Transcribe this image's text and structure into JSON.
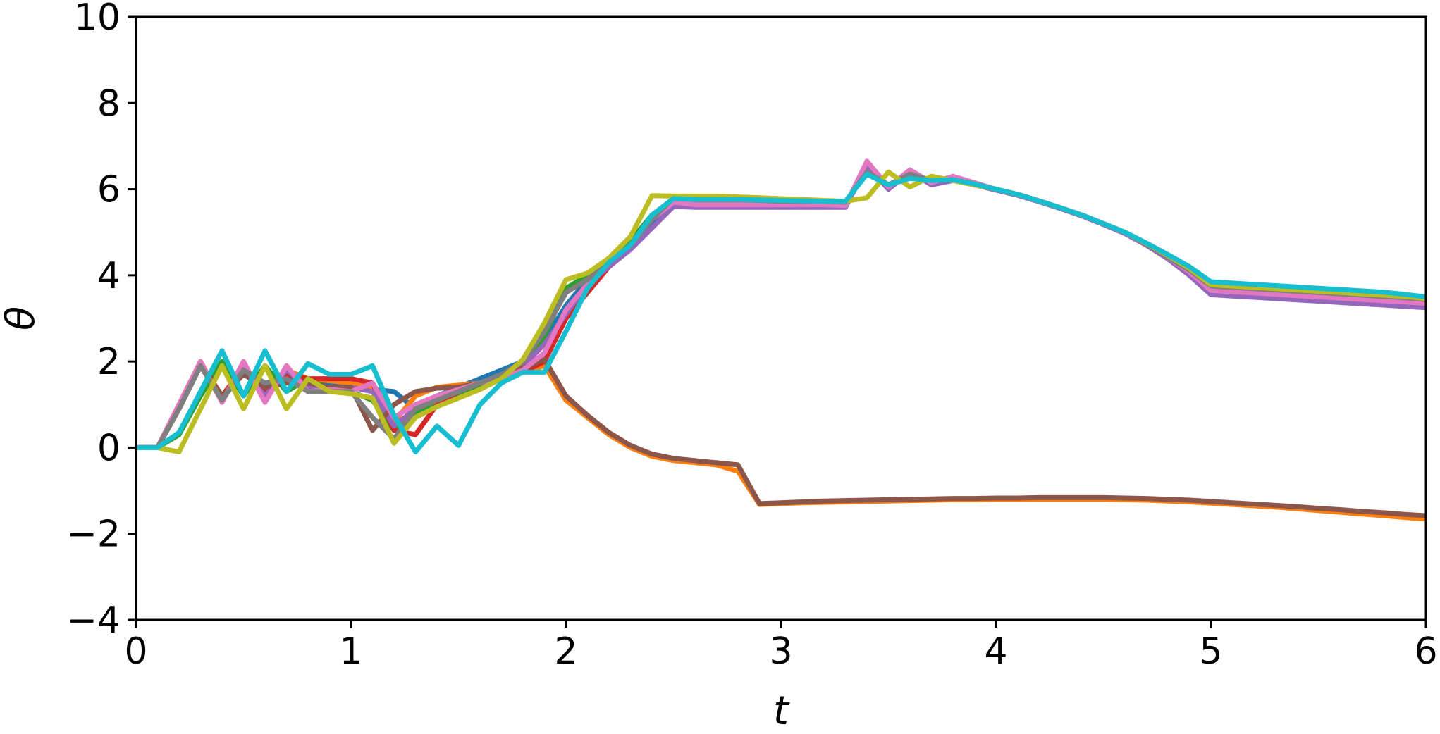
{
  "chart_data": {
    "type": "line",
    "title": "",
    "xlabel": "t",
    "ylabel": "θ",
    "xlim": [
      0,
      6
    ],
    "ylim": [
      -4,
      10
    ],
    "xticks": [
      0,
      1,
      2,
      3,
      4,
      5,
      6
    ],
    "xtick_labels": [
      "0",
      "1",
      "2",
      "3",
      "4",
      "5",
      "6"
    ],
    "yticks": [
      -4,
      -2,
      0,
      2,
      4,
      6,
      8,
      10
    ],
    "ytick_labels": [
      "−4",
      "−2",
      "0",
      "2",
      "4",
      "6",
      "8",
      "10"
    ],
    "grid": false,
    "legend": false,
    "x": [
      0,
      0.1,
      0.2,
      0.3,
      0.4,
      0.5,
      0.6,
      0.7,
      0.8,
      0.9,
      1.0,
      1.1,
      1.2,
      1.3,
      1.4,
      1.5,
      1.6,
      1.7,
      1.8,
      1.9,
      2.0,
      2.1,
      2.2,
      2.3,
      2.4,
      2.5,
      2.6,
      2.7,
      2.8,
      2.9,
      3.0,
      3.1,
      3.2,
      3.3,
      3.4,
      3.5,
      3.6,
      3.7,
      3.8,
      3.9,
      4.0,
      4.1,
      4.2,
      4.3,
      4.4,
      4.5,
      4.6,
      4.7,
      4.8,
      4.9,
      5.0,
      5.1,
      5.2,
      5.3,
      5.4,
      5.5,
      5.6,
      5.7,
      5.8,
      5.9,
      6.0
    ],
    "series": [
      {
        "color": "#1f77b4",
        "values": [
          0,
          0,
          0.9,
          1.9,
          1.2,
          1.8,
          1.3,
          1.7,
          1.5,
          1.45,
          1.4,
          1.35,
          1.3,
          0.9,
          1.2,
          1.4,
          1.6,
          1.8,
          2.0,
          2.5,
          3.3,
          3.9,
          4.3,
          4.7,
          5.2,
          5.65,
          5.62,
          5.62,
          5.62,
          5.62,
          5.62,
          5.62,
          5.62,
          5.62,
          6.5,
          6.05,
          6.35,
          6.15,
          6.25,
          6.12,
          6.0,
          5.88,
          5.73,
          5.57,
          5.4,
          5.2,
          5.0,
          4.72,
          4.4,
          4.05,
          3.6,
          3.57,
          3.54,
          3.51,
          3.48,
          3.45,
          3.42,
          3.39,
          3.36,
          3.33,
          3.3
        ]
      },
      {
        "color": "#ff7f0e",
        "values": [
          0,
          0,
          1.0,
          2.0,
          1.1,
          1.9,
          1.2,
          1.8,
          1.6,
          1.55,
          1.5,
          1.4,
          0.6,
          1.2,
          1.4,
          1.45,
          1.5,
          1.6,
          1.75,
          1.9,
          1.1,
          0.7,
          0.3,
          0.0,
          -0.2,
          -0.3,
          -0.35,
          -0.4,
          -0.55,
          -1.32,
          -1.3,
          -1.28,
          -1.27,
          -1.26,
          -1.25,
          -1.24,
          -1.23,
          -1.22,
          -1.21,
          -1.21,
          -1.2,
          -1.2,
          -1.2,
          -1.2,
          -1.2,
          -1.2,
          -1.21,
          -1.22,
          -1.24,
          -1.26,
          -1.29,
          -1.32,
          -1.35,
          -1.38,
          -1.42,
          -1.46,
          -1.5,
          -1.54,
          -1.58,
          -1.62,
          -1.66
        ]
      },
      {
        "color": "#2ca02c",
        "values": [
          0,
          0,
          0.3,
          1.2,
          2.0,
          1.2,
          1.9,
          1.3,
          1.6,
          1.35,
          1.3,
          1.1,
          0.4,
          0.8,
          1.0,
          1.2,
          1.4,
          1.6,
          1.8,
          2.6,
          3.7,
          4.0,
          4.3,
          4.8,
          5.4,
          5.78,
          5.76,
          5.76,
          5.76,
          5.74,
          5.72,
          5.72,
          5.72,
          5.7,
          6.4,
          6.1,
          6.35,
          6.2,
          6.22,
          6.12,
          6.0,
          5.88,
          5.73,
          5.57,
          5.4,
          5.2,
          5.0,
          4.72,
          4.42,
          4.12,
          3.75,
          3.72,
          3.69,
          3.66,
          3.63,
          3.6,
          3.57,
          3.54,
          3.51,
          3.48,
          3.42
        ]
      },
      {
        "color": "#d62728",
        "values": [
          0,
          0,
          1.0,
          1.95,
          1.2,
          1.85,
          1.3,
          1.7,
          1.6,
          1.6,
          1.6,
          1.5,
          0.4,
          0.3,
          1.0,
          1.3,
          1.5,
          1.6,
          1.75,
          2.0,
          3.0,
          3.6,
          4.2,
          4.7,
          5.3,
          5.7,
          5.68,
          5.68,
          5.68,
          5.68,
          5.68,
          5.68,
          5.68,
          5.66,
          6.45,
          6.05,
          6.35,
          6.15,
          6.25,
          6.12,
          6.0,
          5.88,
          5.73,
          5.57,
          5.4,
          5.2,
          5.0,
          4.72,
          4.42,
          4.1,
          3.7,
          3.67,
          3.64,
          3.61,
          3.58,
          3.55,
          3.52,
          3.49,
          3.46,
          3.43,
          3.4
        ]
      },
      {
        "color": "#9467bd",
        "values": [
          0,
          0,
          0.9,
          1.9,
          1.1,
          1.8,
          1.2,
          1.8,
          1.4,
          1.4,
          1.4,
          1.3,
          0.5,
          0.9,
          1.2,
          1.3,
          1.5,
          1.7,
          1.9,
          2.4,
          3.1,
          3.8,
          4.2,
          4.6,
          5.1,
          5.6,
          5.58,
          5.58,
          5.58,
          5.58,
          5.58,
          5.58,
          5.58,
          5.58,
          6.55,
          6.0,
          6.4,
          6.1,
          6.2,
          6.1,
          5.98,
          5.86,
          5.71,
          5.55,
          5.38,
          5.18,
          4.97,
          4.7,
          4.38,
          4.0,
          3.55,
          3.52,
          3.49,
          3.46,
          3.43,
          3.4,
          3.37,
          3.34,
          3.31,
          3.28,
          3.25
        ]
      },
      {
        "color": "#8c564b",
        "values": [
          0,
          0,
          0.95,
          1.9,
          1.2,
          1.7,
          1.4,
          1.5,
          1.5,
          1.4,
          1.4,
          0.4,
          1.0,
          1.3,
          1.38,
          1.4,
          1.5,
          1.65,
          1.85,
          2.05,
          1.2,
          0.75,
          0.35,
          0.05,
          -0.15,
          -0.25,
          -0.3,
          -0.35,
          -0.4,
          -1.3,
          -1.28,
          -1.26,
          -1.24,
          -1.23,
          -1.22,
          -1.21,
          -1.2,
          -1.19,
          -1.18,
          -1.18,
          -1.17,
          -1.17,
          -1.16,
          -1.16,
          -1.16,
          -1.16,
          -1.17,
          -1.18,
          -1.2,
          -1.22,
          -1.25,
          -1.28,
          -1.31,
          -1.34,
          -1.37,
          -1.41,
          -1.44,
          -1.48,
          -1.51,
          -1.55,
          -1.58
        ]
      },
      {
        "color": "#e377c2",
        "values": [
          0,
          0,
          1.0,
          2.0,
          1.05,
          2.0,
          1.05,
          1.9,
          1.3,
          1.35,
          1.3,
          1.5,
          0.7,
          1.0,
          1.2,
          1.35,
          1.5,
          1.6,
          1.8,
          2.2,
          3.2,
          3.8,
          4.3,
          4.7,
          5.3,
          5.7,
          5.64,
          5.64,
          5.64,
          5.64,
          5.64,
          5.64,
          5.64,
          5.62,
          6.65,
          6.05,
          6.45,
          6.15,
          6.3,
          6.15,
          6.0,
          5.88,
          5.73,
          5.57,
          5.4,
          5.2,
          5.0,
          4.72,
          4.42,
          4.08,
          3.65,
          3.62,
          3.59,
          3.56,
          3.53,
          3.5,
          3.47,
          3.44,
          3.41,
          3.38,
          3.35
        ]
      },
      {
        "color": "#7f7f7f",
        "values": [
          0,
          0,
          0.9,
          1.9,
          1.1,
          1.8,
          1.5,
          1.6,
          1.3,
          1.3,
          1.3,
          0.7,
          0.2,
          0.9,
          1.1,
          1.3,
          1.5,
          1.7,
          2.0,
          2.7,
          3.6,
          3.9,
          4.3,
          4.7,
          5.3,
          5.8,
          5.76,
          5.76,
          5.76,
          5.74,
          5.72,
          5.72,
          5.72,
          5.7,
          6.4,
          6.1,
          6.35,
          6.2,
          6.22,
          6.12,
          6.0,
          5.88,
          5.73,
          5.57,
          5.4,
          5.2,
          5.0,
          4.72,
          4.42,
          4.12,
          3.75,
          3.72,
          3.69,
          3.66,
          3.63,
          3.6,
          3.57,
          3.54,
          3.51,
          3.48,
          3.44
        ]
      },
      {
        "color": "#bcbd22",
        "values": [
          0,
          0,
          -0.1,
          0.9,
          1.9,
          0.9,
          1.9,
          0.9,
          1.6,
          1.3,
          1.25,
          1.15,
          0.1,
          0.7,
          0.95,
          1.15,
          1.35,
          1.6,
          2.05,
          2.9,
          3.9,
          4.05,
          4.4,
          4.9,
          5.85,
          5.84,
          5.84,
          5.84,
          5.82,
          5.8,
          5.78,
          5.76,
          5.74,
          5.72,
          5.8,
          6.4,
          6.05,
          6.3,
          6.2,
          6.1,
          6.0,
          5.88,
          5.73,
          5.57,
          5.4,
          5.2,
          5.0,
          4.74,
          4.46,
          4.16,
          3.78,
          3.75,
          3.72,
          3.69,
          3.66,
          3.63,
          3.6,
          3.57,
          3.54,
          3.51,
          3.46
        ]
      },
      {
        "color": "#17becf",
        "values": [
          0,
          0,
          0.35,
          1.3,
          2.25,
          1.2,
          2.25,
          1.3,
          1.95,
          1.7,
          1.7,
          1.9,
          0.75,
          -0.1,
          0.5,
          0.05,
          1.0,
          1.5,
          1.75,
          1.75,
          2.7,
          3.7,
          4.3,
          4.7,
          5.4,
          5.78,
          5.76,
          5.76,
          5.76,
          5.75,
          5.74,
          5.73,
          5.72,
          5.72,
          6.35,
          6.1,
          6.25,
          6.2,
          6.22,
          6.12,
          6.0,
          5.88,
          5.73,
          5.57,
          5.4,
          5.2,
          5.0,
          4.75,
          4.48,
          4.2,
          3.85,
          3.82,
          3.79,
          3.76,
          3.73,
          3.7,
          3.67,
          3.64,
          3.61,
          3.56,
          3.5
        ]
      }
    ]
  }
}
